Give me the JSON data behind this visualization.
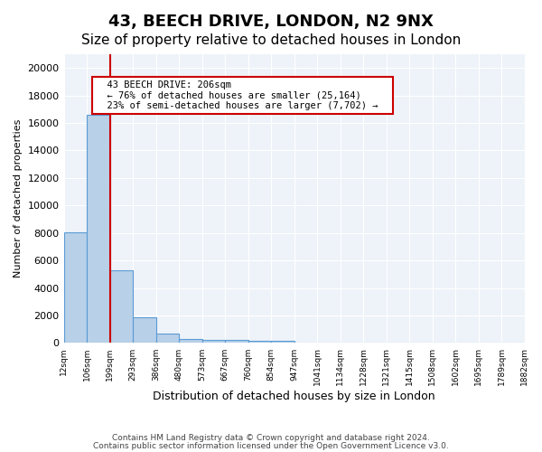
{
  "title": "43, BEECH DRIVE, LONDON, N2 9NX",
  "subtitle": "Size of property relative to detached houses in London",
  "xlabel": "Distribution of detached houses by size in London",
  "ylabel": "Number of detached properties",
  "bin_labels": [
    "12sqm",
    "106sqm",
    "199sqm",
    "293sqm",
    "386sqm",
    "480sqm",
    "573sqm",
    "667sqm",
    "760sqm",
    "854sqm",
    "947sqm",
    "1041sqm",
    "1134sqm",
    "1228sqm",
    "1321sqm",
    "1415sqm",
    "1508sqm",
    "1602sqm",
    "1695sqm",
    "1789sqm",
    "1882sqm"
  ],
  "bar_values": [
    8050,
    16600,
    5300,
    1850,
    700,
    300,
    230,
    200,
    180,
    130,
    0,
    0,
    0,
    0,
    0,
    0,
    0,
    0,
    0,
    0
  ],
  "bar_color": "#b8d0e8",
  "bar_edge_color": "#5b9bd5",
  "red_line_index": 2,
  "ylim": [
    0,
    21000
  ],
  "yticks": [
    0,
    2000,
    4000,
    6000,
    8000,
    10000,
    12000,
    14000,
    16000,
    18000,
    20000
  ],
  "annotation_title": "43 BEECH DRIVE: 206sqm",
  "annotation_line1": "← 76% of detached houses are smaller (25,164)",
  "annotation_line2": "23% of semi-detached houses are larger (7,702) →",
  "annotation_box_color": "#ffffff",
  "annotation_border_color": "#cc0000",
  "background_color": "#eef3f9",
  "grid_color": "#ffffff",
  "footer1": "Contains HM Land Registry data © Crown copyright and database right 2024.",
  "footer2": "Contains public sector information licensed under the Open Government Licence v3.0.",
  "title_fontsize": 13,
  "subtitle_fontsize": 11
}
